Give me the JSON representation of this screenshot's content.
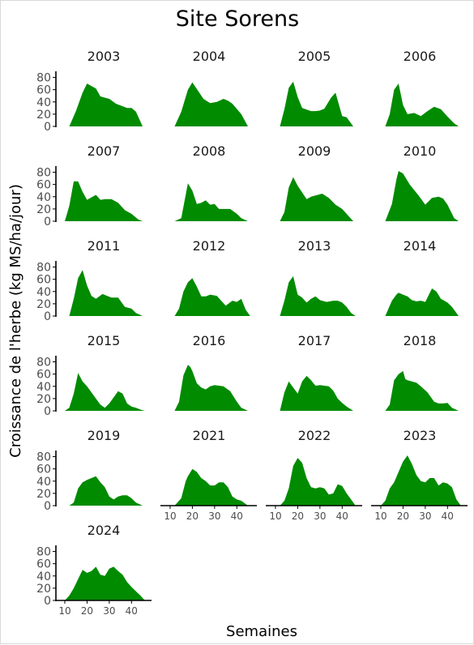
{
  "chart_data": {
    "type": "area",
    "title": "Site Sorens",
    "xlabel": "Semaines",
    "ylabel": "Croissance de l'herbe (kg MS/ha/jour)",
    "xlim": [
      6,
      49
    ],
    "ylim": [
      0,
      90
    ],
    "x_ticks": [
      10,
      20,
      30,
      40
    ],
    "y_ticks": [
      0,
      20,
      40,
      60,
      80
    ],
    "fill_color": "#008B00",
    "grid": false,
    "panels": [
      {
        "year": "2003",
        "x": [
          6,
          12,
          15,
          18,
          20,
          24,
          26,
          30,
          33,
          38,
          40,
          42,
          45
        ],
        "y": [
          0,
          0,
          25,
          55,
          70,
          62,
          49,
          45,
          37,
          30,
          30,
          24,
          0
        ]
      },
      {
        "year": "2004",
        "x": [
          6,
          12,
          15,
          18,
          20,
          25,
          28,
          31,
          34,
          36,
          38,
          42,
          45
        ],
        "y": [
          0,
          0,
          24,
          60,
          72,
          45,
          38,
          40,
          45,
          42,
          37,
          20,
          0
        ]
      },
      {
        "year": "2005",
        "x": [
          6,
          12,
          14,
          16,
          18,
          20,
          22,
          26,
          28,
          30,
          32,
          35,
          37,
          40,
          42,
          45
        ],
        "y": [
          0,
          0,
          28,
          63,
          73,
          48,
          30,
          25,
          25,
          26,
          29,
          47,
          55,
          17,
          15,
          0
        ]
      },
      {
        "year": "2006",
        "x": [
          6,
          12,
          14,
          16,
          18,
          20,
          22,
          25,
          28,
          31,
          34,
          37,
          40,
          43,
          45
        ],
        "y": [
          0,
          0,
          20,
          60,
          70,
          35,
          20,
          22,
          17,
          25,
          32,
          28,
          16,
          5,
          0
        ]
      },
      {
        "year": "2007",
        "x": [
          6,
          10,
          12,
          14,
          16,
          18,
          20,
          24,
          26,
          28,
          31,
          34,
          37,
          40,
          43,
          45
        ],
        "y": [
          0,
          0,
          25,
          65,
          65,
          48,
          35,
          43,
          35,
          36,
          36,
          30,
          18,
          12,
          3,
          0
        ]
      },
      {
        "year": "2008",
        "x": [
          6,
          12,
          15,
          18,
          20,
          22,
          24,
          26,
          28,
          30,
          32,
          35,
          37,
          40,
          42,
          45
        ],
        "y": [
          0,
          0,
          5,
          62,
          50,
          28,
          30,
          34,
          27,
          28,
          20,
          20,
          20,
          12,
          5,
          0
        ]
      },
      {
        "year": "2009",
        "x": [
          6,
          12,
          14,
          16,
          18,
          20,
          24,
          26,
          28,
          31,
          34,
          37,
          40,
          45
        ],
        "y": [
          0,
          0,
          15,
          55,
          72,
          58,
          36,
          40,
          42,
          45,
          38,
          27,
          20,
          0
        ]
      },
      {
        "year": "2010",
        "x": [
          6,
          12,
          15,
          17,
          18,
          20,
          23,
          27,
          30,
          33,
          36,
          38,
          40,
          43,
          45
        ],
        "y": [
          0,
          0,
          28,
          68,
          82,
          78,
          60,
          42,
          27,
          38,
          40,
          37,
          27,
          5,
          0
        ]
      },
      {
        "year": "2011",
        "x": [
          6,
          12,
          14,
          16,
          18,
          20,
          22,
          24,
          27,
          29,
          31,
          34,
          37,
          40,
          42,
          45
        ],
        "y": [
          0,
          0,
          28,
          62,
          75,
          50,
          33,
          28,
          36,
          33,
          30,
          30,
          15,
          12,
          5,
          0
        ]
      },
      {
        "year": "2012",
        "x": [
          6,
          12,
          14,
          16,
          18,
          20,
          22,
          24,
          26,
          28,
          31,
          35,
          38,
          40,
          42,
          44,
          46
        ],
        "y": [
          0,
          0,
          12,
          40,
          55,
          62,
          48,
          32,
          32,
          35,
          33,
          17,
          25,
          23,
          28,
          10,
          0
        ]
      },
      {
        "year": "2013",
        "x": [
          6,
          12,
          14,
          16,
          18,
          20,
          22,
          24,
          26,
          28,
          30,
          33,
          36,
          38,
          40,
          42,
          44,
          46
        ],
        "y": [
          0,
          0,
          25,
          55,
          65,
          35,
          30,
          22,
          28,
          32,
          26,
          23,
          25,
          25,
          22,
          15,
          5,
          0
        ]
      },
      {
        "year": "2014",
        "x": [
          6,
          12,
          15,
          17,
          18,
          20,
          22,
          24,
          26,
          28,
          30,
          33,
          35,
          37,
          40,
          42,
          45
        ],
        "y": [
          0,
          0,
          25,
          35,
          38,
          35,
          32,
          26,
          24,
          25,
          23,
          45,
          40,
          28,
          22,
          15,
          0
        ]
      },
      {
        "year": "2015",
        "x": [
          6,
          10,
          12,
          14,
          16,
          18,
          20,
          22,
          24,
          26,
          28,
          30,
          32,
          34,
          36,
          38,
          40,
          42,
          44,
          46
        ],
        "y": [
          0,
          0,
          5,
          28,
          62,
          48,
          40,
          30,
          20,
          10,
          5,
          12,
          22,
          32,
          28,
          12,
          7,
          5,
          2,
          0
        ]
      },
      {
        "year": "2016",
        "x": [
          6,
          12,
          14,
          16,
          18,
          19,
          20,
          22,
          24,
          26,
          28,
          30,
          34,
          37,
          40,
          42,
          45
        ],
        "y": [
          0,
          0,
          15,
          58,
          75,
          72,
          65,
          45,
          38,
          35,
          40,
          42,
          40,
          32,
          15,
          5,
          0
        ]
      },
      {
        "year": "2017",
        "x": [
          6,
          12,
          14,
          16,
          18,
          20,
          22,
          24,
          26,
          28,
          30,
          34,
          36,
          38,
          40,
          42,
          45
        ],
        "y": [
          0,
          0,
          30,
          48,
          38,
          28,
          48,
          57,
          50,
          41,
          42,
          40,
          33,
          20,
          13,
          7,
          0
        ]
      },
      {
        "year": "2018",
        "x": [
          6,
          12,
          14,
          16,
          18,
          20,
          21,
          22,
          24,
          26,
          28,
          31,
          34,
          36,
          38,
          40,
          42,
          45
        ],
        "y": [
          0,
          0,
          10,
          50,
          60,
          65,
          52,
          50,
          48,
          46,
          40,
          30,
          15,
          12,
          12,
          13,
          5,
          0
        ]
      },
      {
        "year": "2019",
        "x": [
          6,
          12,
          14,
          16,
          18,
          20,
          22,
          24,
          26,
          28,
          30,
          32,
          34,
          36,
          38,
          40,
          42,
          45
        ],
        "y": [
          0,
          0,
          5,
          28,
          38,
          42,
          45,
          48,
          38,
          30,
          15,
          10,
          15,
          17,
          17,
          12,
          5,
          0
        ]
      },
      {
        "year": "2021",
        "x": [
          6,
          12,
          15,
          17,
          18,
          20,
          22,
          24,
          26,
          28,
          30,
          32,
          34,
          36,
          38,
          40,
          42,
          45
        ],
        "y": [
          0,
          0,
          12,
          40,
          48,
          60,
          55,
          45,
          40,
          33,
          33,
          38,
          38,
          30,
          15,
          10,
          8,
          0
        ]
      },
      {
        "year": "2022",
        "x": [
          6,
          12,
          14,
          16,
          18,
          20,
          22,
          24,
          26,
          28,
          30,
          32,
          34,
          36,
          38,
          40,
          42,
          44,
          46
        ],
        "y": [
          0,
          0,
          8,
          28,
          65,
          78,
          70,
          45,
          30,
          28,
          30,
          28,
          18,
          20,
          35,
          32,
          20,
          10,
          0
        ]
      },
      {
        "year": "2023",
        "x": [
          6,
          10,
          12,
          14,
          16,
          18,
          20,
          22,
          24,
          26,
          28,
          30,
          32,
          34,
          36,
          38,
          40,
          42,
          44,
          46
        ],
        "y": [
          0,
          0,
          8,
          28,
          38,
          55,
          72,
          82,
          68,
          50,
          40,
          38,
          45,
          45,
          33,
          38,
          36,
          30,
          10,
          0
        ]
      },
      {
        "year": "2024",
        "x": [
          6,
          10,
          12,
          14,
          16,
          18,
          20,
          22,
          24,
          26,
          28,
          30,
          32,
          34,
          36,
          38,
          40,
          42,
          44,
          46
        ],
        "y": [
          0,
          0,
          8,
          20,
          35,
          50,
          45,
          48,
          55,
          42,
          40,
          52,
          55,
          48,
          42,
          30,
          22,
          15,
          8,
          0
        ]
      }
    ]
  }
}
